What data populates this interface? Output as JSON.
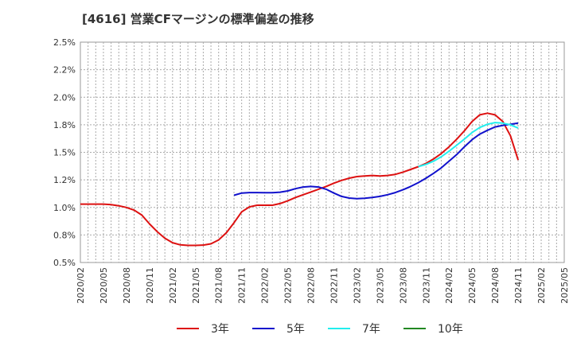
{
  "chart_data": {
    "type": "line",
    "title": "[4616]  営業CFマージンの標準偏差の推移",
    "xlabel": "",
    "ylabel": "",
    "x_tick_labels": [
      "2020/02",
      "2020/05",
      "2020/08",
      "2020/11",
      "2021/02",
      "2021/05",
      "2021/08",
      "2021/11",
      "2022/02",
      "2022/05",
      "2022/08",
      "2022/11",
      "2023/02",
      "2023/05",
      "2023/08",
      "2023/11",
      "2024/02",
      "2024/05",
      "2024/08",
      "2024/11",
      "2025/02",
      "2025/05"
    ],
    "y_ticks": [
      0.5,
      0.75,
      1.0,
      1.25,
      1.5,
      1.75,
      2.0,
      2.25,
      2.5
    ],
    "y_tick_labels": [
      "0.5%",
      "0.8%",
      "1.0%",
      "1.2%",
      "1.5%",
      "1.8%",
      "2.0%",
      "2.2%",
      "2.5%"
    ],
    "ylim": [
      0.5,
      2.5
    ],
    "grid": true,
    "legend_position": "bottom",
    "series": [
      {
        "name": "3年",
        "color": "#dd1111",
        "points": [
          [
            "2020/02",
            1.03
          ],
          [
            "2020/03",
            1.03
          ],
          [
            "2020/04",
            1.03
          ],
          [
            "2020/05",
            1.03
          ],
          [
            "2020/06",
            1.025
          ],
          [
            "2020/07",
            1.015
          ],
          [
            "2020/08",
            1.0
          ],
          [
            "2020/09",
            0.975
          ],
          [
            "2020/10",
            0.93
          ],
          [
            "2020/11",
            0.85
          ],
          [
            "2020/12",
            0.78
          ],
          [
            "2021/01",
            0.72
          ],
          [
            "2021/02",
            0.68
          ],
          [
            "2021/03",
            0.66
          ],
          [
            "2021/04",
            0.655
          ],
          [
            "2021/05",
            0.655
          ],
          [
            "2021/06",
            0.658
          ],
          [
            "2021/07",
            0.67
          ],
          [
            "2021/08",
            0.705
          ],
          [
            "2021/09",
            0.77
          ],
          [
            "2021/10",
            0.86
          ],
          [
            "2021/11",
            0.96
          ],
          [
            "2021/12",
            1.005
          ],
          [
            "2022/01",
            1.02
          ],
          [
            "2022/02",
            1.02
          ],
          [
            "2022/03",
            1.02
          ],
          [
            "2022/04",
            1.035
          ],
          [
            "2022/05",
            1.06
          ],
          [
            "2022/06",
            1.09
          ],
          [
            "2022/07",
            1.115
          ],
          [
            "2022/08",
            1.14
          ],
          [
            "2022/09",
            1.165
          ],
          [
            "2022/10",
            1.19
          ],
          [
            "2022/11",
            1.22
          ],
          [
            "2022/12",
            1.245
          ],
          [
            "2023/01",
            1.265
          ],
          [
            "2023/02",
            1.28
          ],
          [
            "2023/03",
            1.285
          ],
          [
            "2023/04",
            1.29
          ],
          [
            "2023/05",
            1.285
          ],
          [
            "2023/06",
            1.29
          ],
          [
            "2023/07",
            1.3
          ],
          [
            "2023/08",
            1.32
          ],
          [
            "2023/09",
            1.345
          ],
          [
            "2023/10",
            1.37
          ],
          [
            "2023/11",
            1.4
          ],
          [
            "2023/12",
            1.44
          ],
          [
            "2024/01",
            1.49
          ],
          [
            "2024/02",
            1.55
          ],
          [
            "2024/03",
            1.62
          ],
          [
            "2024/04",
            1.695
          ],
          [
            "2024/05",
            1.78
          ],
          [
            "2024/06",
            1.84
          ],
          [
            "2024/07",
            1.855
          ],
          [
            "2024/08",
            1.84
          ],
          [
            "2024/09",
            1.78
          ],
          [
            "2024/10",
            1.65
          ],
          [
            "2024/11",
            1.43
          ]
        ]
      },
      {
        "name": "5年",
        "color": "#1111cc",
        "points": [
          [
            "2021/10",
            1.11
          ],
          [
            "2021/11",
            1.13
          ],
          [
            "2021/12",
            1.135
          ],
          [
            "2022/01",
            1.135
          ],
          [
            "2022/02",
            1.133
          ],
          [
            "2022/03",
            1.133
          ],
          [
            "2022/04",
            1.138
          ],
          [
            "2022/05",
            1.15
          ],
          [
            "2022/06",
            1.17
          ],
          [
            "2022/07",
            1.185
          ],
          [
            "2022/08",
            1.19
          ],
          [
            "2022/09",
            1.185
          ],
          [
            "2022/10",
            1.165
          ],
          [
            "2022/11",
            1.13
          ],
          [
            "2022/12",
            1.1
          ],
          [
            "2023/01",
            1.085
          ],
          [
            "2023/02",
            1.08
          ],
          [
            "2023/03",
            1.083
          ],
          [
            "2023/04",
            1.09
          ],
          [
            "2023/05",
            1.1
          ],
          [
            "2023/06",
            1.115
          ],
          [
            "2023/07",
            1.135
          ],
          [
            "2023/08",
            1.16
          ],
          [
            "2023/09",
            1.19
          ],
          [
            "2023/10",
            1.225
          ],
          [
            "2023/11",
            1.265
          ],
          [
            "2023/12",
            1.31
          ],
          [
            "2024/01",
            1.36
          ],
          [
            "2024/02",
            1.42
          ],
          [
            "2024/03",
            1.48
          ],
          [
            "2024/04",
            1.55
          ],
          [
            "2024/05",
            1.615
          ],
          [
            "2024/06",
            1.665
          ],
          [
            "2024/07",
            1.7
          ],
          [
            "2024/08",
            1.73
          ],
          [
            "2024/09",
            1.745
          ],
          [
            "2024/10",
            1.755
          ],
          [
            "2024/11",
            1.765
          ]
        ]
      },
      {
        "name": "7年",
        "color": "#22eeee",
        "points": [
          [
            "2023/10",
            1.37
          ],
          [
            "2023/11",
            1.39
          ],
          [
            "2023/12",
            1.42
          ],
          [
            "2024/01",
            1.46
          ],
          [
            "2024/02",
            1.51
          ],
          [
            "2024/03",
            1.565
          ],
          [
            "2024/04",
            1.62
          ],
          [
            "2024/05",
            1.68
          ],
          [
            "2024/06",
            1.725
          ],
          [
            "2024/07",
            1.755
          ],
          [
            "2024/08",
            1.77
          ],
          [
            "2024/09",
            1.765
          ],
          [
            "2024/10",
            1.75
          ],
          [
            "2024/11",
            1.72
          ]
        ]
      },
      {
        "name": "10年",
        "color": "#228822",
        "points": []
      }
    ]
  }
}
